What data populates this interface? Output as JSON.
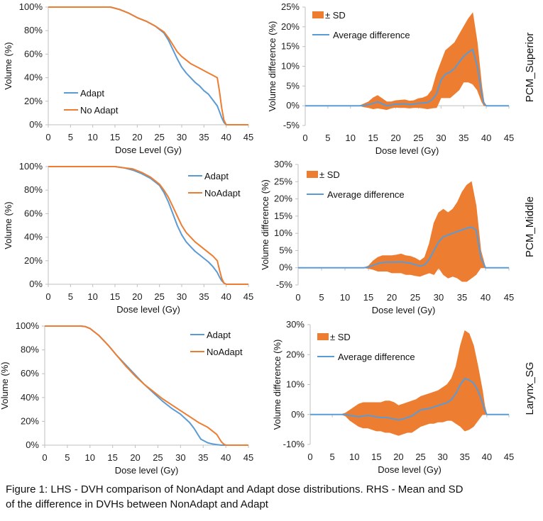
{
  "colors": {
    "adapt": "#5b9bd5",
    "noadapt": "#ed7d31",
    "sd": "#ed7d31",
    "avg": "#5b9bd5",
    "axis": "#bfbfbf"
  },
  "caption": {
    "line1": "Figure 1:  LHS - DVH comparison of NonAdapt and Adapt dose distributions. RHS - Mean and SD",
    "line2": "of the difference in DVHs between NonAdapt and Adapt"
  },
  "chart_data": [
    {
      "id": "dvh-pcm-superior",
      "type": "line",
      "xlabel": "Dose Level (Gy)",
      "ylabel": "Volume (%)",
      "xlim": [
        0,
        45
      ],
      "ylim": [
        0,
        100
      ],
      "xticks": [
        0,
        5,
        10,
        15,
        20,
        25,
        30,
        35,
        40,
        45
      ],
      "yticks": [
        0,
        20,
        40,
        60,
        80,
        100
      ],
      "ytick_suffix": "%",
      "legend": "lower-left",
      "series": [
        {
          "name": "Adapt",
          "color": "adapt",
          "x": [
            0,
            14,
            16,
            18,
            20,
            22,
            24,
            26,
            27,
            28,
            29,
            30,
            31,
            32,
            33,
            34,
            35,
            36,
            37,
            38,
            38.5,
            39,
            39.5,
            40,
            45
          ],
          "y": [
            100,
            100,
            98,
            95,
            91,
            88,
            84,
            78,
            72,
            64,
            56,
            49,
            44,
            40,
            36,
            33,
            29,
            26,
            21,
            16,
            11,
            6,
            2,
            0,
            0
          ]
        },
        {
          "name": "No Adapt",
          "color": "noadapt",
          "x": [
            0,
            14,
            16,
            18,
            20,
            22,
            24,
            26,
            27,
            28,
            29,
            30,
            31,
            32,
            33,
            34,
            35,
            36,
            37,
            38,
            38.5,
            39,
            39.5,
            40,
            45
          ],
          "y": [
            100,
            100,
            98,
            95,
            91,
            88,
            84,
            79,
            74,
            68,
            62,
            58,
            55,
            52,
            50,
            48,
            46,
            44,
            42,
            40,
            28,
            14,
            4,
            0,
            0
          ]
        }
      ]
    },
    {
      "id": "diff-pcm-superior",
      "type": "area",
      "xlabel": "Dose level (Gy)",
      "ylabel": "Volume difference (%)",
      "xlim": [
        0,
        45
      ],
      "ylim": [
        -5,
        25
      ],
      "xticks": [
        0,
        5,
        10,
        15,
        20,
        25,
        30,
        35,
        40,
        45
      ],
      "yticks": [
        -5,
        0,
        5,
        10,
        15,
        20,
        25
      ],
      "ytick_suffix": "%",
      "legend": "top-left",
      "band_name": "± SD",
      "mean_name": "Average difference",
      "x": [
        0,
        12,
        13,
        14,
        15,
        16,
        17,
        18,
        19,
        20,
        21,
        22,
        23,
        24,
        25,
        26,
        27,
        28,
        29,
        30,
        31,
        32,
        33,
        34,
        35,
        36,
        37,
        38,
        39,
        39.5,
        40,
        45
      ],
      "mean": [
        0,
        0,
        0.1,
        0.3,
        0.6,
        1,
        0.5,
        0,
        0.2,
        0.4,
        0.4,
        0.5,
        0.3,
        0.4,
        0.6,
        0.7,
        0.8,
        1.5,
        3,
        6.5,
        8,
        8.5,
        9.5,
        11,
        12.5,
        13.5,
        14.3,
        10,
        3,
        0.5,
        0,
        0
      ],
      "upper": [
        0,
        0,
        0.5,
        1,
        2,
        2.6,
        1.8,
        1,
        1,
        1.3,
        1.4,
        1.5,
        1.2,
        1.3,
        1.8,
        2,
        2.5,
        4,
        8,
        11,
        14,
        15,
        16,
        18,
        20,
        22,
        23.5,
        16,
        5,
        1,
        0,
        0
      ],
      "lower": [
        0,
        0,
        -0.3,
        -0.5,
        -0.8,
        -0.6,
        -0.8,
        -1,
        -0.6,
        -0.4,
        -0.5,
        -0.5,
        -0.6,
        -0.5,
        -0.5,
        -0.6,
        -0.8,
        -0.6,
        -0.5,
        2,
        2,
        2,
        3,
        4,
        6,
        6,
        5.5,
        4,
        1,
        0,
        0,
        0
      ]
    },
    {
      "id": "dvh-pcm-middle",
      "type": "line",
      "xlabel": "Dose level (Gy)",
      "ylabel": "Volume (%)",
      "xlim": [
        0,
        45
      ],
      "ylim": [
        0,
        100
      ],
      "xticks": [
        0,
        5,
        10,
        15,
        20,
        25,
        30,
        35,
        40,
        45
      ],
      "yticks": [
        0,
        20,
        40,
        60,
        80,
        100
      ],
      "ytick_suffix": "%",
      "legend": "top-right",
      "series": [
        {
          "name": "Adapt",
          "color": "adapt",
          "x": [
            0,
            15,
            17,
            19,
            21,
            23,
            25,
            26,
            27,
            28,
            29,
            30,
            31,
            32,
            33,
            34,
            35,
            36,
            37,
            38,
            38.5,
            39,
            39.5,
            40,
            45
          ],
          "y": [
            100,
            100,
            99,
            97,
            94,
            90,
            84,
            78,
            70,
            60,
            50,
            42,
            36,
            32,
            28,
            25,
            22,
            19,
            15,
            10,
            6,
            3,
            1,
            0,
            0
          ]
        },
        {
          "name": "NoAdapt",
          "color": "noadapt",
          "x": [
            0,
            15,
            17,
            19,
            21,
            23,
            25,
            26,
            27,
            28,
            29,
            30,
            31,
            32,
            33,
            34,
            35,
            36,
            37,
            38,
            38.5,
            39,
            39.5,
            40,
            45
          ],
          "y": [
            100,
            100,
            99,
            98,
            95,
            91,
            85,
            80,
            74,
            66,
            58,
            50,
            44,
            40,
            36,
            33,
            30,
            27,
            24,
            20,
            12,
            5,
            1,
            0,
            0
          ]
        }
      ]
    },
    {
      "id": "diff-pcm-middle",
      "type": "area",
      "xlabel": "Dose level (Gy)",
      "ylabel": "Volume difference (%)",
      "xlim": [
        0,
        45
      ],
      "ylim": [
        -5,
        30
      ],
      "xticks": [
        0,
        5,
        10,
        15,
        20,
        25,
        30,
        35,
        40,
        45
      ],
      "yticks": [
        -5,
        0,
        5,
        10,
        15,
        20,
        25,
        30
      ],
      "ytick_suffix": "%",
      "legend": "top-left",
      "band_name": "± SD",
      "mean_name": "Average difference",
      "x": [
        0,
        14,
        15,
        16,
        17,
        18,
        19,
        20,
        21,
        22,
        23,
        24,
        25,
        26,
        27,
        28,
        29,
        30,
        31,
        32,
        33,
        34,
        35,
        36,
        37,
        38,
        39,
        40,
        45
      ],
      "mean": [
        0,
        0,
        0.2,
        0.7,
        1.2,
        1.5,
        1.6,
        1.6,
        1.6,
        1.7,
        1.5,
        1.3,
        0.9,
        0.5,
        0.8,
        2.5,
        5,
        7.5,
        9,
        9.5,
        10,
        10.5,
        11,
        11.5,
        11.8,
        11,
        3,
        0,
        0
      ],
      "upper": [
        0,
        0,
        0.5,
        2,
        3,
        3.5,
        3.5,
        3.5,
        3.7,
        4,
        3.5,
        3.3,
        2.8,
        2,
        3,
        7,
        13,
        16,
        17,
        16,
        17,
        19,
        22,
        24,
        25,
        18,
        5,
        0,
        0
      ],
      "lower": [
        0,
        0,
        -0.2,
        -0.5,
        -1,
        -1,
        -1,
        -1.5,
        -1.5,
        -1.5,
        -2,
        -2,
        -2.3,
        -2.5,
        -2,
        -1.5,
        -2,
        0,
        -2,
        -3,
        -2.5,
        -3,
        -4,
        -4,
        -3,
        -2,
        0,
        0,
        0
      ]
    },
    {
      "id": "dvh-larynx-sg",
      "type": "line",
      "xlabel": "Dose level (Gy)",
      "ylabel": "Volume (%)",
      "xlim": [
        0,
        45
      ],
      "ylim": [
        0,
        100
      ],
      "xticks": [
        0,
        5,
        10,
        15,
        20,
        25,
        30,
        35,
        40,
        45
      ],
      "yticks": [
        0,
        20,
        40,
        60,
        80,
        100
      ],
      "ytick_suffix": "%",
      "legend": "top-right",
      "series": [
        {
          "name": "Adapt",
          "color": "adapt",
          "x": [
            0,
            8,
            9,
            10,
            12,
            14,
            16,
            18,
            20,
            22,
            24,
            26,
            28,
            30,
            32,
            33,
            34,
            34.5,
            35,
            36,
            37,
            38,
            39,
            40,
            45
          ],
          "y": [
            100,
            100,
            99.5,
            98,
            92,
            84,
            75,
            67,
            59,
            51,
            44,
            37,
            31,
            26,
            19,
            14,
            8,
            5,
            4,
            2,
            1,
            0.5,
            0,
            0,
            0
          ]
        },
        {
          "name": "NoAdapt",
          "color": "noadapt",
          "x": [
            0,
            8,
            9,
            10,
            12,
            14,
            16,
            18,
            20,
            22,
            24,
            26,
            28,
            30,
            32,
            34,
            36,
            37,
            38,
            38.5,
            39,
            39.5,
            40,
            45
          ],
          "y": [
            100,
            100,
            99.5,
            98,
            92,
            84,
            75,
            66,
            58,
            51,
            45,
            39,
            34,
            29,
            24,
            19,
            15,
            12,
            9,
            6,
            3,
            1,
            0,
            0
          ]
        }
      ]
    },
    {
      "id": "diff-larynx-sg",
      "type": "area",
      "xlabel": "Dose level (Gy)",
      "ylabel": "Volume difference (%)",
      "xlim": [
        0,
        45
      ],
      "ylim": [
        -10,
        30
      ],
      "xticks": [
        0,
        5,
        10,
        15,
        20,
        25,
        30,
        35,
        40,
        45
      ],
      "yticks": [
        -10,
        0,
        10,
        20,
        30
      ],
      "ytick_suffix": "%",
      "legend": "top-left",
      "band_name": "± SD",
      "mean_name": "Average difference",
      "x": [
        0,
        7,
        8,
        9,
        10,
        11,
        12,
        13,
        14,
        15,
        16,
        17,
        18,
        19,
        20,
        21,
        22,
        23,
        24,
        25,
        26,
        27,
        28,
        29,
        30,
        31,
        32,
        33,
        34,
        35,
        36,
        37,
        38,
        39,
        39.5,
        40,
        45
      ],
      "mean": [
        0,
        0,
        0,
        -0.3,
        -0.5,
        -0.8,
        -0.5,
        -0.3,
        -0.5,
        -0.8,
        -1,
        -1,
        -1.2,
        -1.5,
        -1.8,
        -1.5,
        -1,
        -0.5,
        0.5,
        1.5,
        1.8,
        2,
        2.5,
        3,
        3.5,
        4,
        5,
        7,
        10,
        12,
        11.5,
        10.5,
        8,
        4,
        1.5,
        0,
        0
      ],
      "upper": [
        0,
        0,
        0.5,
        1.5,
        2.5,
        3.5,
        4,
        4,
        4,
        4,
        4,
        4.5,
        4.5,
        4,
        3,
        3.5,
        4,
        4.5,
        5,
        6,
        6.5,
        7,
        7.5,
        8,
        9,
        10,
        12,
        16,
        23,
        28,
        27,
        23,
        16,
        8,
        3,
        0,
        0
      ],
      "lower": [
        0,
        0,
        -0.5,
        -2,
        -3,
        -4,
        -4.5,
        -4.5,
        -5,
        -5.5,
        -5.5,
        -6,
        -6,
        -6.5,
        -7,
        -6.5,
        -6,
        -6,
        -5,
        -4,
        -3.5,
        -3,
        -3,
        -2.5,
        -2.5,
        -2,
        -2,
        -3,
        -4,
        -5.5,
        -5,
        -4,
        -2,
        0,
        0,
        0,
        0
      ]
    }
  ],
  "row_labels": [
    "PCM_Superior",
    "PCM_Middle",
    "Larynx_SG"
  ]
}
